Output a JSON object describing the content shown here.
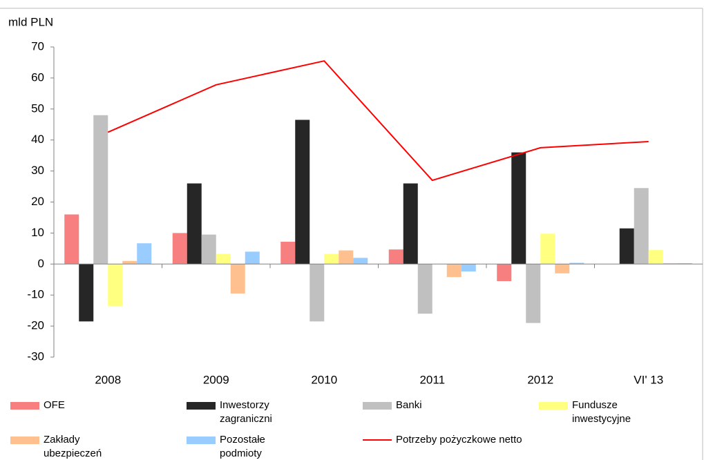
{
  "chart_data": {
    "type": "bar",
    "y_label": "mld PLN",
    "categories": [
      "2008",
      "2009",
      "2010",
      "2011",
      "2012",
      "VI' 13"
    ],
    "ylim": [
      -30,
      70
    ],
    "yticks": [
      -30,
      -20,
      -10,
      0,
      10,
      20,
      30,
      40,
      50,
      60,
      70
    ],
    "grid": false,
    "series": [
      {
        "name": "OFE",
        "type": "bar",
        "color": "#f77f7f",
        "values": [
          16,
          10,
          7.2,
          4.7,
          -5.5,
          0
        ]
      },
      {
        "name": "Inwestorzy zagraniczni",
        "type": "bar",
        "color": "#262626",
        "values": [
          -18.5,
          26,
          46.5,
          26,
          36,
          11.5
        ]
      },
      {
        "name": "Banki",
        "type": "bar",
        "color": "#c0c0c0",
        "values": [
          48,
          9.5,
          -18.5,
          -16,
          -19,
          24.5
        ]
      },
      {
        "name": "Fundusze inwestycyjne",
        "type": "bar",
        "color": "#ffff80",
        "values": [
          -13.5,
          3.3,
          3.3,
          0,
          9.8,
          4.5
        ]
      },
      {
        "name": "Zakłady ubezpieczeń",
        "type": "bar",
        "color": "#ffc090",
        "values": [
          1,
          -9.5,
          4.4,
          -4.2,
          -3,
          0.3
        ]
      },
      {
        "name": "Pozostałe podmioty",
        "type": "bar",
        "color": "#99ccff",
        "values": [
          6.7,
          4,
          2,
          -2.4,
          0.4,
          0.3
        ]
      },
      {
        "name": "Potrzeby pożyczkowe netto",
        "type": "line",
        "color": "#ff0000",
        "values": [
          42.5,
          57.8,
          65.5,
          27,
          37.5,
          39.5
        ]
      }
    ]
  }
}
